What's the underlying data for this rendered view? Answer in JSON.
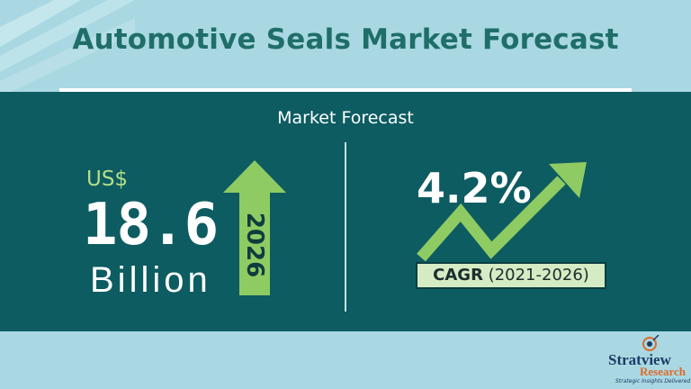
{
  "header": {
    "title": "Automotive Seals Market Forecast"
  },
  "panel": {
    "subtitle": "Market Forecast",
    "market_size": {
      "currency": "US$",
      "value": "18.6",
      "unit": "Billion",
      "year": "2026"
    },
    "growth": {
      "cagr_value": "4.2%",
      "cagr_label": "CAGR",
      "cagr_period": "(2021-2026)"
    }
  },
  "logo": {
    "name_part1": "Stratview",
    "name_part2": "Research",
    "tagline": "Strategic Insights Delivered"
  },
  "colors": {
    "background": "#a9d8e2",
    "panel": "#0d5c61",
    "accent_green": "#8fcb63",
    "title": "#1f6e6a"
  }
}
